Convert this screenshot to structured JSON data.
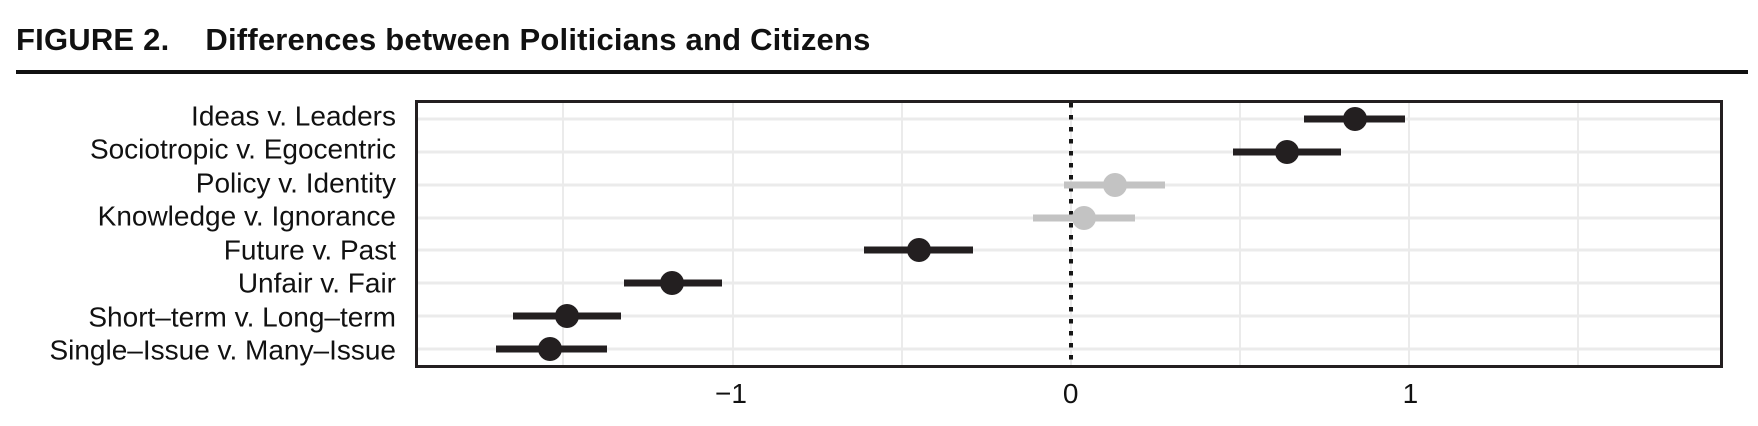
{
  "figure": {
    "label": "FIGURE 2.",
    "title": "Differences between Politicians and Citizens"
  },
  "chart_data": {
    "type": "scatter",
    "subtype": "dot-whisker",
    "orientation": "horizontal",
    "title": "FIGURE 2. Differences between Politicians and Citizens",
    "xlabel": "",
    "ylabel": "",
    "xlim": [
      -1.93,
      1.92
    ],
    "x_ticks": [
      -1,
      0,
      1
    ],
    "x_tick_labels": [
      "−1",
      "0",
      "1"
    ],
    "x_gridlines": [
      -1.5,
      -1,
      -0.5,
      0,
      0.5,
      1,
      1.5
    ],
    "reference_line_x": 0,
    "grid": "on",
    "legend": "none",
    "categories": [
      "Ideas v. Leaders",
      "Sociotropic v. Egocentric",
      "Policy v. Identity",
      "Knowledge v. Ignorance",
      "Future v. Past",
      "Unfair v. Fair",
      "Short–term v. Long–term",
      "Single–Issue v. Many–Issue"
    ],
    "points": [
      {
        "label": "Ideas v. Leaders",
        "estimate": 0.84,
        "ci_low": 0.69,
        "ci_high": 0.99,
        "significant": true
      },
      {
        "label": "Sociotropic v. Egocentric",
        "estimate": 0.64,
        "ci_low": 0.48,
        "ci_high": 0.8,
        "significant": true
      },
      {
        "label": "Policy v. Identity",
        "estimate": 0.13,
        "ci_low": -0.02,
        "ci_high": 0.28,
        "significant": false
      },
      {
        "label": "Knowledge v. Ignorance",
        "estimate": 0.04,
        "ci_low": -0.11,
        "ci_high": 0.19,
        "significant": false
      },
      {
        "label": "Future v. Past",
        "estimate": -0.45,
        "ci_low": -0.61,
        "ci_high": -0.29,
        "significant": true
      },
      {
        "label": "Unfair v. Fair",
        "estimate": -1.18,
        "ci_low": -1.32,
        "ci_high": -1.03,
        "significant": true
      },
      {
        "label": "Short–term v. Long–term",
        "estimate": -1.49,
        "ci_low": -1.65,
        "ci_high": -1.33,
        "significant": true
      },
      {
        "label": "Single–Issue v. Many–Issue",
        "estimate": -1.54,
        "ci_low": -1.7,
        "ci_high": -1.37,
        "significant": true
      }
    ],
    "colors": {
      "significant": "#231f20",
      "insignificant": "#c3c3c3",
      "grid": "#ebebeb",
      "reference_line": "#161616",
      "panel_border": "#231f20"
    }
  }
}
